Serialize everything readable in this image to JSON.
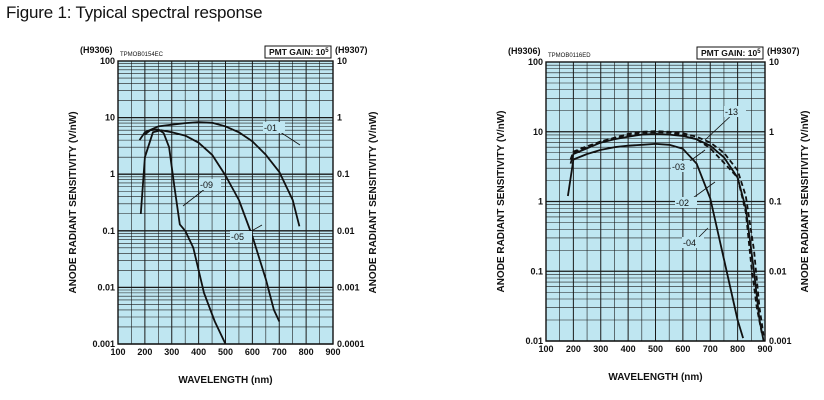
{
  "figure_title": "Figure 1: Typical spectral response",
  "colors": {
    "plot_bg": "#bfe6f1",
    "grid": "#1a1a1a",
    "curve": "#111111"
  },
  "chart_data": [
    {
      "type": "line",
      "code": "TPMOB0154EC",
      "left_model": "(H9306)",
      "right_model": "(H9307)",
      "gain_label": "PMT GAIN: 10",
      "gain_exp": "5",
      "xlabel": "WAVELENGTH (nm)",
      "ylabel_left": "ANODE RADIANT SENSITIVITY (V/nW)",
      "ylabel_right": "ANODE RADIANT SENSITIVITY (V/nW)",
      "xlim": [
        100,
        900
      ],
      "ylim": [
        0.001,
        100
      ],
      "y_scale": "log",
      "x_ticks": [
        "100",
        "200",
        "300",
        "400",
        "500",
        "600",
        "700",
        "800",
        "900"
      ],
      "y_ticks_left": [
        "100",
        "10",
        "1",
        "0.1",
        "0.01",
        "0.001"
      ],
      "y_ticks_right": [
        "10",
        "1",
        "0.1",
        "0.01",
        "0.001",
        "0.0001"
      ],
      "series": [
        {
          "name": "-01",
          "x": [
            180,
            200,
            250,
            300,
            350,
            400,
            450,
            500,
            550,
            600,
            650,
            700,
            750,
            775
          ],
          "y": [
            4,
            5.5,
            7,
            7.5,
            8,
            8.3,
            8.1,
            7,
            5.5,
            3.8,
            2.2,
            1.1,
            0.35,
            0.12
          ]
        },
        {
          "name": "-05",
          "x": [
            185,
            200,
            230,
            260,
            300,
            350,
            400,
            450,
            500,
            550,
            600,
            650,
            680,
            700
          ],
          "y": [
            0.2,
            2,
            5.5,
            6,
            5.5,
            4.8,
            3.6,
            2.2,
            0.95,
            0.35,
            0.08,
            0.014,
            0.004,
            0.0025
          ]
        },
        {
          "name": "-09",
          "x": [
            200,
            220,
            250,
            270,
            290,
            310,
            330,
            350,
            380,
            420,
            460,
            500
          ],
          "y": [
            5,
            6,
            6.2,
            5.3,
            3,
            0.6,
            0.13,
            0.1,
            0.05,
            0.008,
            0.0025,
            0.001
          ]
        }
      ],
      "labels": [
        {
          "text": "-01"
        },
        {
          "text": "-05"
        },
        {
          "text": "-09"
        }
      ]
    },
    {
      "type": "line",
      "code": "TPMOB0116ED",
      "left_model": "(H9306)",
      "right_model": "(H9307)",
      "gain_label": "PMT GAIN: 10",
      "gain_exp": "5",
      "xlabel": "WAVELENGTH (nm)",
      "ylabel_left": "ANODE RADIANT SENSITIVITY (V/nW)",
      "ylabel_right": "ANODE RADIANT SENSITIVITY (V/nW)",
      "xlim": [
        100,
        900
      ],
      "ylim": [
        0.01,
        100
      ],
      "y_scale": "log",
      "x_ticks": [
        "100",
        "200",
        "300",
        "400",
        "500",
        "600",
        "700",
        "800",
        "900"
      ],
      "y_ticks_left": [
        "100",
        "10",
        "1",
        "0.1",
        "0.01"
      ],
      "y_ticks_right": [
        "10",
        "1",
        "0.1",
        "0.01",
        "0.001"
      ],
      "series": [
        {
          "name": "-13",
          "dashed": true,
          "x": [
            190,
            200,
            250,
            300,
            350,
            400,
            450,
            500,
            550,
            600,
            650,
            700,
            750,
            800,
            830,
            860,
            880,
            895
          ],
          "y": [
            4,
            5,
            6,
            7.3,
            8.2,
            9.3,
            10,
            10.2,
            10,
            9.5,
            8.5,
            7,
            5,
            2.8,
            1.2,
            0.2,
            0.03,
            0.012
          ]
        },
        {
          "name": "-02",
          "x": [
            190,
            200,
            250,
            300,
            350,
            400,
            450,
            500,
            550,
            600,
            650,
            700,
            750,
            800,
            830,
            860,
            880,
            895
          ],
          "y": [
            3.5,
            4.8,
            5.8,
            7,
            7.8,
            8.5,
            9.1,
            9.3,
            9.1,
            8.7,
            7.8,
            6.3,
            4.3,
            2.2,
            0.8,
            0.1,
            0.02,
            0.01
          ]
        },
        {
          "name": "-03",
          "dashed": true,
          "x": [
            190,
            200,
            250,
            300,
            350,
            400,
            450,
            500,
            550,
            600,
            650,
            700,
            750,
            800,
            830,
            850,
            870,
            890
          ],
          "y": [
            4,
            5.2,
            6.2,
            7.2,
            8,
            8.8,
            9.6,
            9.9,
            9.7,
            9,
            7.8,
            5.8,
            3.6,
            2.2,
            0.7,
            0.12,
            0.03,
            0.012
          ]
        },
        {
          "name": "-04",
          "x": [
            180,
            200,
            250,
            300,
            350,
            400,
            450,
            500,
            550,
            600,
            650,
            700,
            750,
            800,
            820
          ],
          "y": [
            1.2,
            4,
            4.8,
            5.5,
            6,
            6.3,
            6.5,
            6.7,
            6.5,
            5.7,
            3.5,
            1.1,
            0.15,
            0.02,
            0.011
          ]
        }
      ],
      "labels": [
        {
          "text": "-13"
        },
        {
          "text": "-03"
        },
        {
          "text": "-02"
        },
        {
          "text": "-04"
        }
      ]
    }
  ]
}
